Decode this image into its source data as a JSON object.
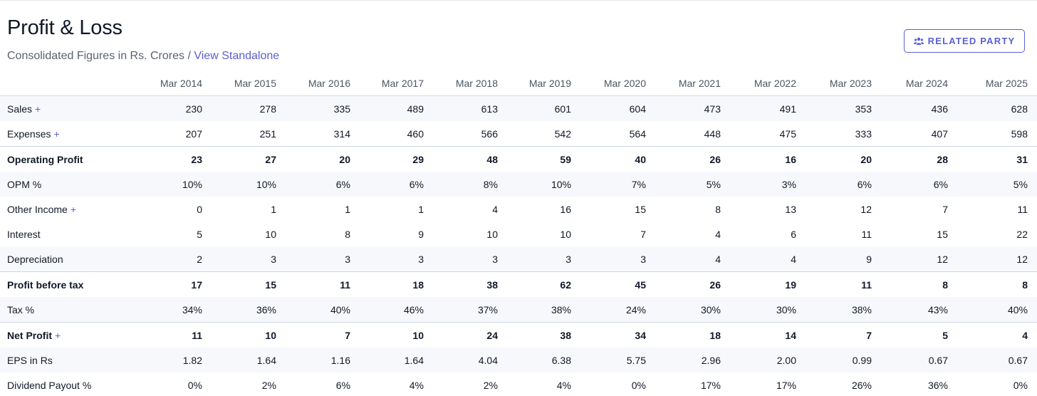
{
  "header": {
    "title": "Profit & Loss",
    "subtitle": "Consolidated Figures in Rs. Crores",
    "separator": "/",
    "view_link": "View Standalone",
    "related_party_label": "RELATED PARTY",
    "accent_color": "#5b5fd6"
  },
  "table": {
    "columns": [
      "Mar 2014",
      "Mar 2015",
      "Mar 2016",
      "Mar 2017",
      "Mar 2018",
      "Mar 2019",
      "Mar 2020",
      "Mar 2021",
      "Mar 2022",
      "Mar 2023",
      "Mar 2024",
      "Mar 2025"
    ],
    "rows": [
      {
        "label": "Sales",
        "expandable": true,
        "bold": false,
        "values": [
          "230",
          "278",
          "335",
          "489",
          "613",
          "601",
          "604",
          "473",
          "491",
          "353",
          "436",
          "628"
        ]
      },
      {
        "label": "Expenses",
        "expandable": true,
        "bold": false,
        "values": [
          "207",
          "251",
          "314",
          "460",
          "566",
          "542",
          "564",
          "448",
          "475",
          "333",
          "407",
          "598"
        ]
      },
      {
        "label": "Operating Profit",
        "expandable": false,
        "bold": true,
        "values": [
          "23",
          "27",
          "20",
          "29",
          "48",
          "59",
          "40",
          "26",
          "16",
          "20",
          "28",
          "31"
        ]
      },
      {
        "label": "OPM %",
        "expandable": false,
        "bold": false,
        "values": [
          "10%",
          "10%",
          "6%",
          "6%",
          "8%",
          "10%",
          "7%",
          "5%",
          "3%",
          "6%",
          "6%",
          "5%"
        ]
      },
      {
        "label": "Other Income",
        "expandable": true,
        "bold": false,
        "values": [
          "0",
          "1",
          "1",
          "1",
          "4",
          "16",
          "15",
          "8",
          "13",
          "12",
          "7",
          "11"
        ]
      },
      {
        "label": "Interest",
        "expandable": false,
        "bold": false,
        "values": [
          "5",
          "10",
          "8",
          "9",
          "10",
          "10",
          "7",
          "4",
          "6",
          "11",
          "15",
          "22"
        ]
      },
      {
        "label": "Depreciation",
        "expandable": false,
        "bold": false,
        "values": [
          "2",
          "3",
          "3",
          "3",
          "3",
          "3",
          "3",
          "4",
          "4",
          "9",
          "12",
          "12"
        ]
      },
      {
        "label": "Profit before tax",
        "expandable": false,
        "bold": true,
        "values": [
          "17",
          "15",
          "11",
          "18",
          "38",
          "62",
          "45",
          "26",
          "19",
          "11",
          "8",
          "8"
        ]
      },
      {
        "label": "Tax %",
        "expandable": false,
        "bold": false,
        "values": [
          "34%",
          "36%",
          "40%",
          "46%",
          "37%",
          "38%",
          "24%",
          "30%",
          "30%",
          "38%",
          "43%",
          "40%"
        ]
      },
      {
        "label": "Net Profit",
        "expandable": true,
        "bold": true,
        "values": [
          "11",
          "10",
          "7",
          "10",
          "24",
          "38",
          "34",
          "18",
          "14",
          "7",
          "5",
          "4"
        ]
      },
      {
        "label": "EPS in Rs",
        "expandable": false,
        "bold": false,
        "values": [
          "1.82",
          "1.64",
          "1.16",
          "1.64",
          "4.04",
          "6.38",
          "5.75",
          "2.96",
          "2.00",
          "0.99",
          "0.67",
          "0.67"
        ]
      },
      {
        "label": "Dividend Payout %",
        "expandable": false,
        "bold": false,
        "values": [
          "0%",
          "2%",
          "6%",
          "4%",
          "2%",
          "4%",
          "0%",
          "17%",
          "17%",
          "26%",
          "36%",
          "0%"
        ]
      }
    ],
    "expand_symbol": "+"
  }
}
